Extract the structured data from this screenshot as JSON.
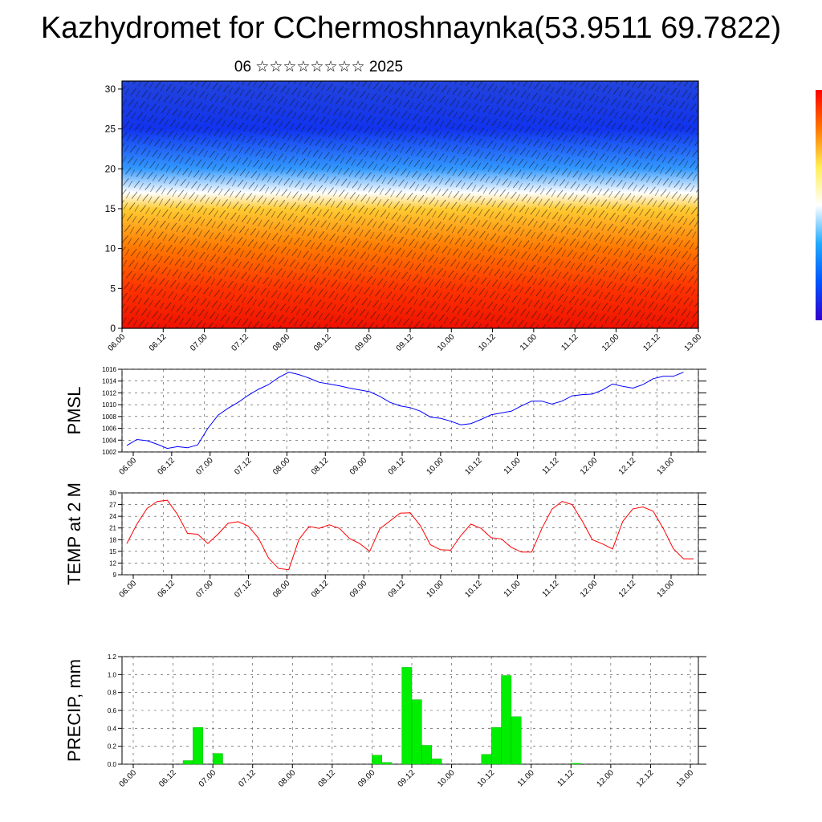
{
  "title": "Kazhydromet for CChermoshnaynka(53.9511 69.7822)",
  "subtitle": "06 ☆☆☆☆☆☆☆☆ 2025",
  "colors": {
    "pmsl_line": "#0000ff",
    "temp_line": "#ff0000",
    "precip_bar": "#00ee00",
    "colorbar": [
      "#3300cc",
      "#0055ff",
      "#22aaff",
      "#ffffff",
      "#ffee55",
      "#ff7700",
      "#ff0000"
    ]
  },
  "chart_data": [
    {
      "type": "heatmap",
      "title": "",
      "xlabel": "",
      "ylabel": "",
      "x_tick_labels": [
        "06.00",
        "06.12",
        "07.00",
        "07.12",
        "08.00",
        "08.12",
        "09.00",
        "09.12",
        "10.00",
        "10.12",
        "11.00",
        "11.12",
        "12.00",
        "12.12",
        "13.00"
      ],
      "y_ticks": [
        0,
        5,
        10,
        15,
        20,
        25,
        30
      ],
      "ylim": [
        0,
        31
      ],
      "description_note": "",
      "bands": [
        {
          "level": 0,
          "color": "#ee1100"
        },
        {
          "level": 5,
          "color": "#ff3300"
        },
        {
          "level": 10,
          "color": "#ff7700"
        },
        {
          "level": 15,
          "color": "#ffcc33"
        },
        {
          "level": 17,
          "color": "#ffffff"
        },
        {
          "level": 20,
          "color": "#3399ff"
        },
        {
          "level": 25,
          "color": "#1133ee"
        },
        {
          "level": 31,
          "color": "#2244dd"
        }
      ]
    },
    {
      "type": "line",
      "ylabel": "PMSL",
      "x_tick_labels": [
        "06.00",
        "06.12",
        "07.00",
        "07.12",
        "08.00",
        "08.12",
        "09.00",
        "09.12",
        "10.00",
        "10.12",
        "11.00",
        "11.12",
        "12.00",
        "12.12",
        "13.00"
      ],
      "y_ticks": [
        1002,
        1004,
        1006,
        1008,
        1010,
        1012,
        1014,
        1016
      ],
      "ylim": [
        1002,
        1016
      ],
      "x": [
        0,
        3,
        6,
        9,
        12,
        15,
        18,
        21,
        24,
        27,
        30,
        33,
        36,
        39,
        42,
        45,
        48,
        51,
        54,
        57,
        60,
        63,
        66,
        69,
        72,
        75,
        78,
        81,
        84,
        87,
        90,
        93,
        96,
        99,
        102,
        105,
        108,
        111,
        114,
        117,
        120,
        123,
        126,
        129,
        132,
        135,
        138,
        141,
        144,
        147,
        150,
        153,
        156,
        159,
        162,
        165,
        168
      ],
      "values": [
        1003.1,
        1004.1,
        1003.9,
        1003.3,
        1002.6,
        1002.9,
        1002.7,
        1003.2,
        1006.0,
        1008.2,
        1009.4,
        1010.4,
        1011.6,
        1012.6,
        1013.4,
        1014.6,
        1015.5,
        1015.1,
        1014.5,
        1013.8,
        1013.5,
        1013.2,
        1012.8,
        1012.5,
        1012.2,
        1011.4,
        1010.4,
        1009.8,
        1009.5,
        1008.9,
        1007.9,
        1007.7,
        1007.2,
        1006.6,
        1006.8,
        1007.5,
        1008.3,
        1008.6,
        1008.9,
        1009.8,
        1010.6,
        1010.6,
        1010.1,
        1010.6,
        1011.5,
        1011.7,
        1011.8,
        1012.5,
        1013.5,
        1013.1,
        1012.8,
        1013.4,
        1014.4,
        1014.8,
        1014.8,
        1015.5,
        null
      ]
    },
    {
      "type": "line",
      "ylabel": "TEMP at 2 M",
      "x_tick_labels": [
        "06.00",
        "06.12",
        "07.00",
        "07.12",
        "08.00",
        "08.12",
        "09.00",
        "09.12",
        "10.00",
        "10.12",
        "11.00",
        "11.12",
        "12.00",
        "12.12",
        "13.00"
      ],
      "y_ticks": [
        9,
        12,
        15,
        18,
        21,
        24,
        27,
        30
      ],
      "ylim": [
        9,
        30
      ],
      "x": [
        0,
        3,
        6,
        9,
        12,
        15,
        18,
        21,
        24,
        27,
        30,
        33,
        36,
        39,
        42,
        45,
        48,
        51,
        54,
        57,
        60,
        63,
        66,
        69,
        72,
        75,
        78,
        81,
        84,
        87,
        90,
        93,
        96,
        99,
        102,
        105,
        108,
        111,
        114,
        117,
        120,
        123,
        126,
        129,
        132,
        135,
        138,
        141,
        144,
        147,
        150,
        153,
        156,
        159,
        162,
        165,
        168
      ],
      "values": [
        17.0,
        22.0,
        26.0,
        27.8,
        28.1,
        24.5,
        19.6,
        19.4,
        17.0,
        19.4,
        22.2,
        22.6,
        21.5,
        18.4,
        13.3,
        10.6,
        10.3,
        18.0,
        21.4,
        20.9,
        21.8,
        20.9,
        18.3,
        17.0,
        15.0,
        20.8,
        22.8,
        24.8,
        24.9,
        21.6,
        16.7,
        15.4,
        15.3,
        19.0,
        22.0,
        20.9,
        18.5,
        18.2,
        16.0,
        14.8,
        14.8,
        20.8,
        25.8,
        27.8,
        27.0,
        22.8,
        18.0,
        16.9,
        15.6,
        22.7,
        25.9,
        26.4,
        25.3,
        20.9,
        15.7,
        13.1,
        13.1
      ]
    },
    {
      "type": "bar",
      "ylabel": "PRECIP, mm",
      "x_tick_labels": [
        "06.00",
        "06.12",
        "07.00",
        "07.12",
        "08.00",
        "08.12",
        "09.00",
        "09.12",
        "10.00",
        "10.12",
        "11.00",
        "11.12",
        "12.00",
        "12.12",
        "13.00"
      ],
      "y_ticks": [
        0.0,
        0.2,
        0.4,
        0.6,
        0.8,
        1.0,
        1.2
      ],
      "ylim": [
        0,
        1.2
      ],
      "x": [
        0,
        3,
        6,
        9,
        12,
        15,
        18,
        21,
        24,
        27,
        30,
        33,
        36,
        39,
        42,
        45,
        48,
        51,
        54,
        57,
        60,
        63,
        66,
        69,
        72,
        75,
        78,
        81,
        84,
        87,
        90,
        93,
        96,
        99,
        102,
        105,
        108,
        111,
        114,
        117,
        120,
        123,
        126,
        129,
        132,
        135,
        138,
        141,
        144,
        147,
        150,
        153,
        156,
        159,
        162,
        165
      ],
      "values": [
        0,
        0,
        0,
        0,
        0,
        0.04,
        0.41,
        0,
        0.12,
        0,
        0,
        0,
        0,
        0,
        0,
        0,
        0,
        0,
        0,
        0,
        0,
        0,
        0,
        0,
        0.1,
        0.02,
        0,
        1.08,
        0.72,
        0.21,
        0.06,
        0,
        0,
        0,
        0,
        0.11,
        0.41,
        0.99,
        0.53,
        0,
        0,
        0,
        0,
        0,
        0.01,
        0,
        0,
        0,
        0,
        0,
        0,
        0,
        0,
        0,
        0,
        0
      ]
    }
  ]
}
